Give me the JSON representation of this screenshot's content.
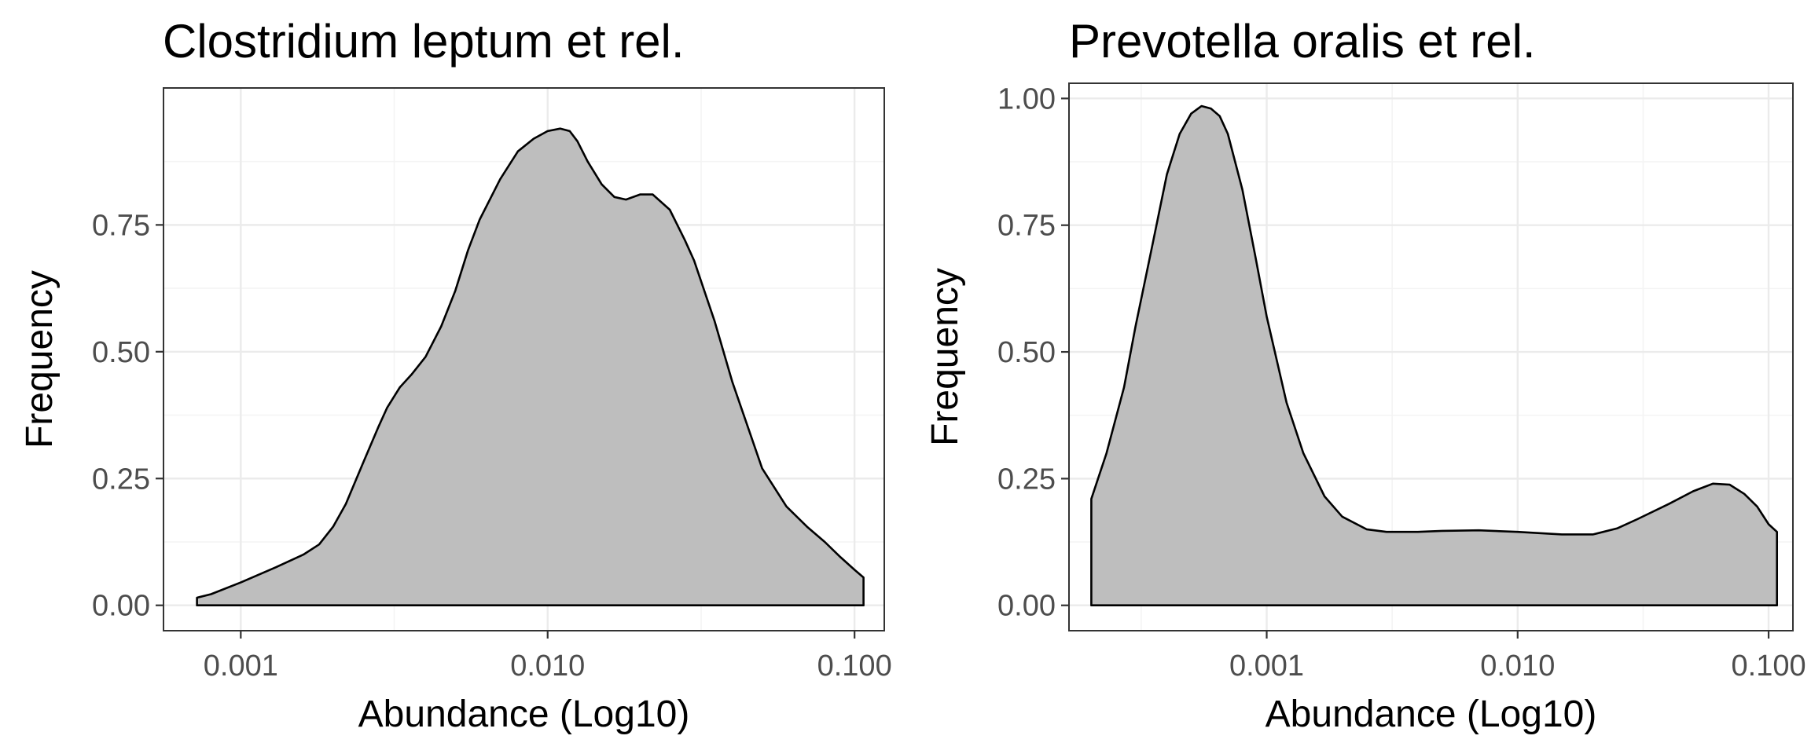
{
  "chart_data": [
    {
      "type": "area",
      "title": "Clostridium leptum et rel.",
      "xlabel": "Abundance (Log10)",
      "ylabel": "Frequency",
      "x_scale": "log10",
      "xlim": [
        0.00056,
        0.125
      ],
      "ylim": [
        -0.05,
        1.02
      ],
      "x_ticks": [
        0.001,
        0.01,
        0.1
      ],
      "x_tick_labels": [
        "0.001",
        "0.010",
        "0.100"
      ],
      "y_ticks": [
        0,
        0.25,
        0.5,
        0.75
      ],
      "y_tick_labels": [
        "0.00",
        "0.25",
        "0.50",
        "0.75"
      ],
      "grid": true,
      "fill_color": "#bebebe",
      "series": [
        {
          "x": [
            0.00072,
            0.0008,
            0.001,
            0.0013,
            0.0016,
            0.0018,
            0.002,
            0.0022,
            0.0025,
            0.0028,
            0.003,
            0.0033,
            0.0036,
            0.004,
            0.0045,
            0.005,
            0.0055,
            0.006,
            0.007,
            0.008,
            0.009,
            0.01,
            0.011,
            0.0118,
            0.0125,
            0.0135,
            0.015,
            0.0165,
            0.018,
            0.02,
            0.022,
            0.025,
            0.028,
            0.03,
            0.035,
            0.04,
            0.05,
            0.06,
            0.07,
            0.08,
            0.09,
            0.1,
            0.107
          ],
          "y": [
            0.015,
            0.022,
            0.045,
            0.075,
            0.1,
            0.12,
            0.155,
            0.2,
            0.28,
            0.35,
            0.39,
            0.43,
            0.455,
            0.49,
            0.55,
            0.62,
            0.7,
            0.76,
            0.84,
            0.895,
            0.92,
            0.935,
            0.94,
            0.935,
            0.915,
            0.875,
            0.83,
            0.805,
            0.8,
            0.81,
            0.81,
            0.78,
            0.72,
            0.68,
            0.56,
            0.44,
            0.27,
            0.195,
            0.155,
            0.125,
            0.095,
            0.07,
            0.055
          ]
        }
      ]
    },
    {
      "type": "area",
      "title": "Prevotella oralis et rel.",
      "xlabel": "Abundance (Log10)",
      "ylabel": "Frequency",
      "x_scale": "log10",
      "xlim": [
        0.000163,
        0.125
      ],
      "ylim": [
        -0.05,
        1.03
      ],
      "x_ticks": [
        0.001,
        0.01,
        0.1
      ],
      "x_tick_labels": [
        "0.001",
        "0.010",
        "0.100"
      ],
      "y_ticks": [
        0,
        0.25,
        0.5,
        0.75,
        1.0
      ],
      "y_tick_labels": [
        "0.00",
        "0.25",
        "0.50",
        "0.75",
        "1.00"
      ],
      "grid": true,
      "fill_color": "#bebebe",
      "series": [
        {
          "x": [
            0.0002,
            0.00023,
            0.00027,
            0.0003,
            0.00035,
            0.0004,
            0.00045,
            0.0005,
            0.00055,
            0.0006,
            0.00065,
            0.0007,
            0.0008,
            0.0009,
            0.001,
            0.0012,
            0.0014,
            0.0017,
            0.002,
            0.0025,
            0.003,
            0.004,
            0.005,
            0.007,
            0.01,
            0.015,
            0.02,
            0.025,
            0.03,
            0.04,
            0.05,
            0.06,
            0.07,
            0.08,
            0.09,
            0.1,
            0.108
          ],
          "y": [
            0.21,
            0.3,
            0.43,
            0.55,
            0.71,
            0.85,
            0.93,
            0.97,
            0.985,
            0.98,
            0.965,
            0.93,
            0.82,
            0.69,
            0.57,
            0.4,
            0.3,
            0.215,
            0.175,
            0.15,
            0.145,
            0.145,
            0.147,
            0.148,
            0.145,
            0.14,
            0.14,
            0.152,
            0.17,
            0.2,
            0.225,
            0.24,
            0.238,
            0.22,
            0.195,
            0.16,
            0.145
          ]
        }
      ]
    }
  ]
}
